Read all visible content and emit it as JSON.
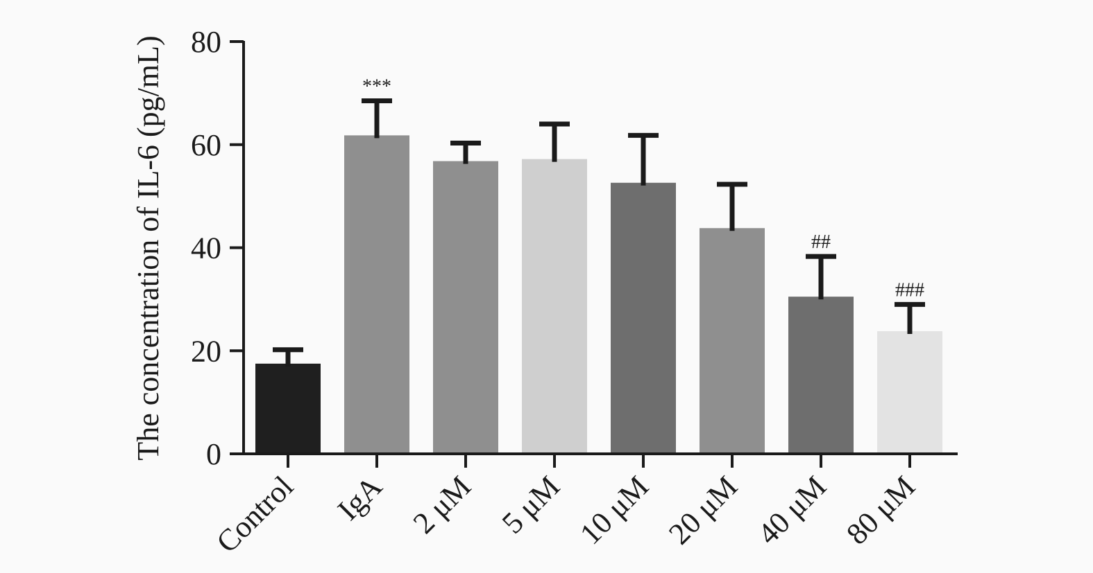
{
  "chart_data": {
    "type": "bar",
    "title": "",
    "xlabel": "",
    "ylabel": "The concentration of IL-6 (pg/mL)",
    "ylim": [
      0,
      80
    ],
    "yticks": [
      0,
      20,
      40,
      60,
      80
    ],
    "grid": false,
    "categories": [
      "Control",
      "IgA",
      "2 μM",
      "5 μM",
      "10 μM",
      "20 μM",
      "40 μM",
      "80 μM"
    ],
    "values": [
      17.5,
      61.8,
      56.8,
      57.2,
      52.6,
      43.8,
      30.5,
      23.8
    ],
    "error_upper": [
      20.2,
      68.5,
      60.3,
      64.0,
      61.8,
      52.3,
      38.3,
      29.0
    ],
    "colors": [
      "#1f1f1f",
      "#8f8f8f",
      "#8f8f8f",
      "#cfcfcf",
      "#6e6e6e",
      "#8f8f8f",
      "#6e6e6e",
      "#e3e3e3"
    ],
    "annotations": [
      "",
      "***",
      "",
      "",
      "",
      "",
      "##",
      "###"
    ]
  }
}
